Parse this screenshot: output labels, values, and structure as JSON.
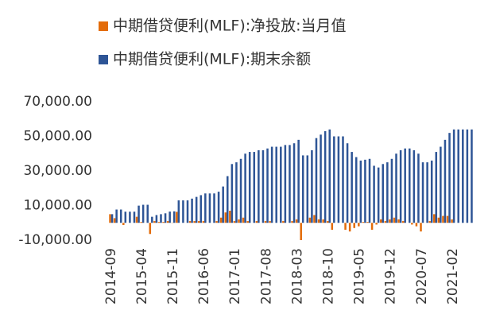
{
  "chart_data": {
    "type": "bar",
    "categories": [
      "2014-09",
      null,
      null,
      null,
      null,
      null,
      null,
      "2015-04",
      null,
      null,
      null,
      null,
      null,
      null,
      "2015-11",
      null,
      null,
      null,
      null,
      null,
      null,
      "2016-06",
      null,
      null,
      null,
      null,
      null,
      null,
      "2017-01",
      null,
      null,
      null,
      null,
      null,
      null,
      "2017-08",
      null,
      null,
      null,
      null,
      null,
      null,
      "2018-03",
      null,
      null,
      null,
      null,
      null,
      null,
      "2018-10",
      null,
      null,
      null,
      null,
      null,
      null,
      "2019-05",
      null,
      null,
      null,
      null,
      null,
      null,
      "2019-12",
      null,
      null,
      null,
      null,
      null,
      null,
      "2020-07",
      null,
      null,
      null,
      null,
      null,
      null,
      "2021-02",
      null,
      null,
      null,
      null
    ],
    "series": [
      {
        "name": "中期借贷便利(MLF):净投放:当月值",
        "color": "#e36c0a",
        "values": [
          5000,
          2695,
          0,
          -1250,
          0,
          0,
          3500,
          500,
          0,
          -6445,
          1000,
          500,
          500,
          1000,
          158,
          6342,
          0,
          0,
          1000,
          1000,
          1000,
          1000,
          0,
          0,
          1000,
          3000,
          6000,
          7000,
          1000,
          2000,
          3000,
          1000,
          0,
          1000,
          0,
          1000,
          1000,
          0,
          0,
          1000,
          0,
          1000,
          2000,
          -10000,
          0,
          3000,
          4500,
          2000,
          2000,
          1000,
          -4000,
          0,
          0,
          -4000,
          -5000,
          -3000,
          -2000,
          500,
          500,
          -4000,
          -1000,
          2000,
          1000,
          2000,
          3000,
          2000,
          1000,
          0,
          -1000,
          -2000,
          -5000,
          0,
          1000,
          5000,
          3000,
          4000,
          4000,
          2000,
          0,
          0,
          0,
          0
        ]
      },
      {
        "name": "中期借贷便利(MLF):期末余额",
        "color": "#2e5596",
        "values": [
          5000,
          7695,
          7695,
          6445,
          6445,
          6445,
          9945,
          10445,
          10445,
          3500,
          4500,
          5000,
          5500,
          6500,
          6658,
          13000,
          13000,
          13000,
          14000,
          15000,
          16000,
          17000,
          17000,
          17000,
          18000,
          21000,
          27000,
          34000,
          35000,
          37000,
          40000,
          41000,
          41000,
          42000,
          42000,
          43000,
          44000,
          44000,
          44000,
          45000,
          45000,
          46000,
          48000,
          39000,
          39000,
          42000,
          49000,
          51000,
          53000,
          54000,
          50000,
          50000,
          50000,
          46000,
          41000,
          38000,
          36000,
          36500,
          37000,
          33000,
          32000,
          34000,
          35000,
          37000,
          40000,
          42000,
          43000,
          43000,
          42000,
          40000,
          35000,
          35000,
          36000,
          41000,
          44000,
          48000,
          52000,
          54000,
          54000,
          54000,
          54000,
          54000
        ]
      }
    ],
    "ylim": [
      -10000,
      70000
    ],
    "yticks": [
      {
        "value": -10000,
        "label": "-10,000.00"
      },
      {
        "value": 10000,
        "label": "10,000.00"
      },
      {
        "value": 30000,
        "label": "30,000.00"
      },
      {
        "value": 50000,
        "label": "50,000.00"
      },
      {
        "value": 70000,
        "label": "70,000.00"
      }
    ],
    "grid": false
  }
}
